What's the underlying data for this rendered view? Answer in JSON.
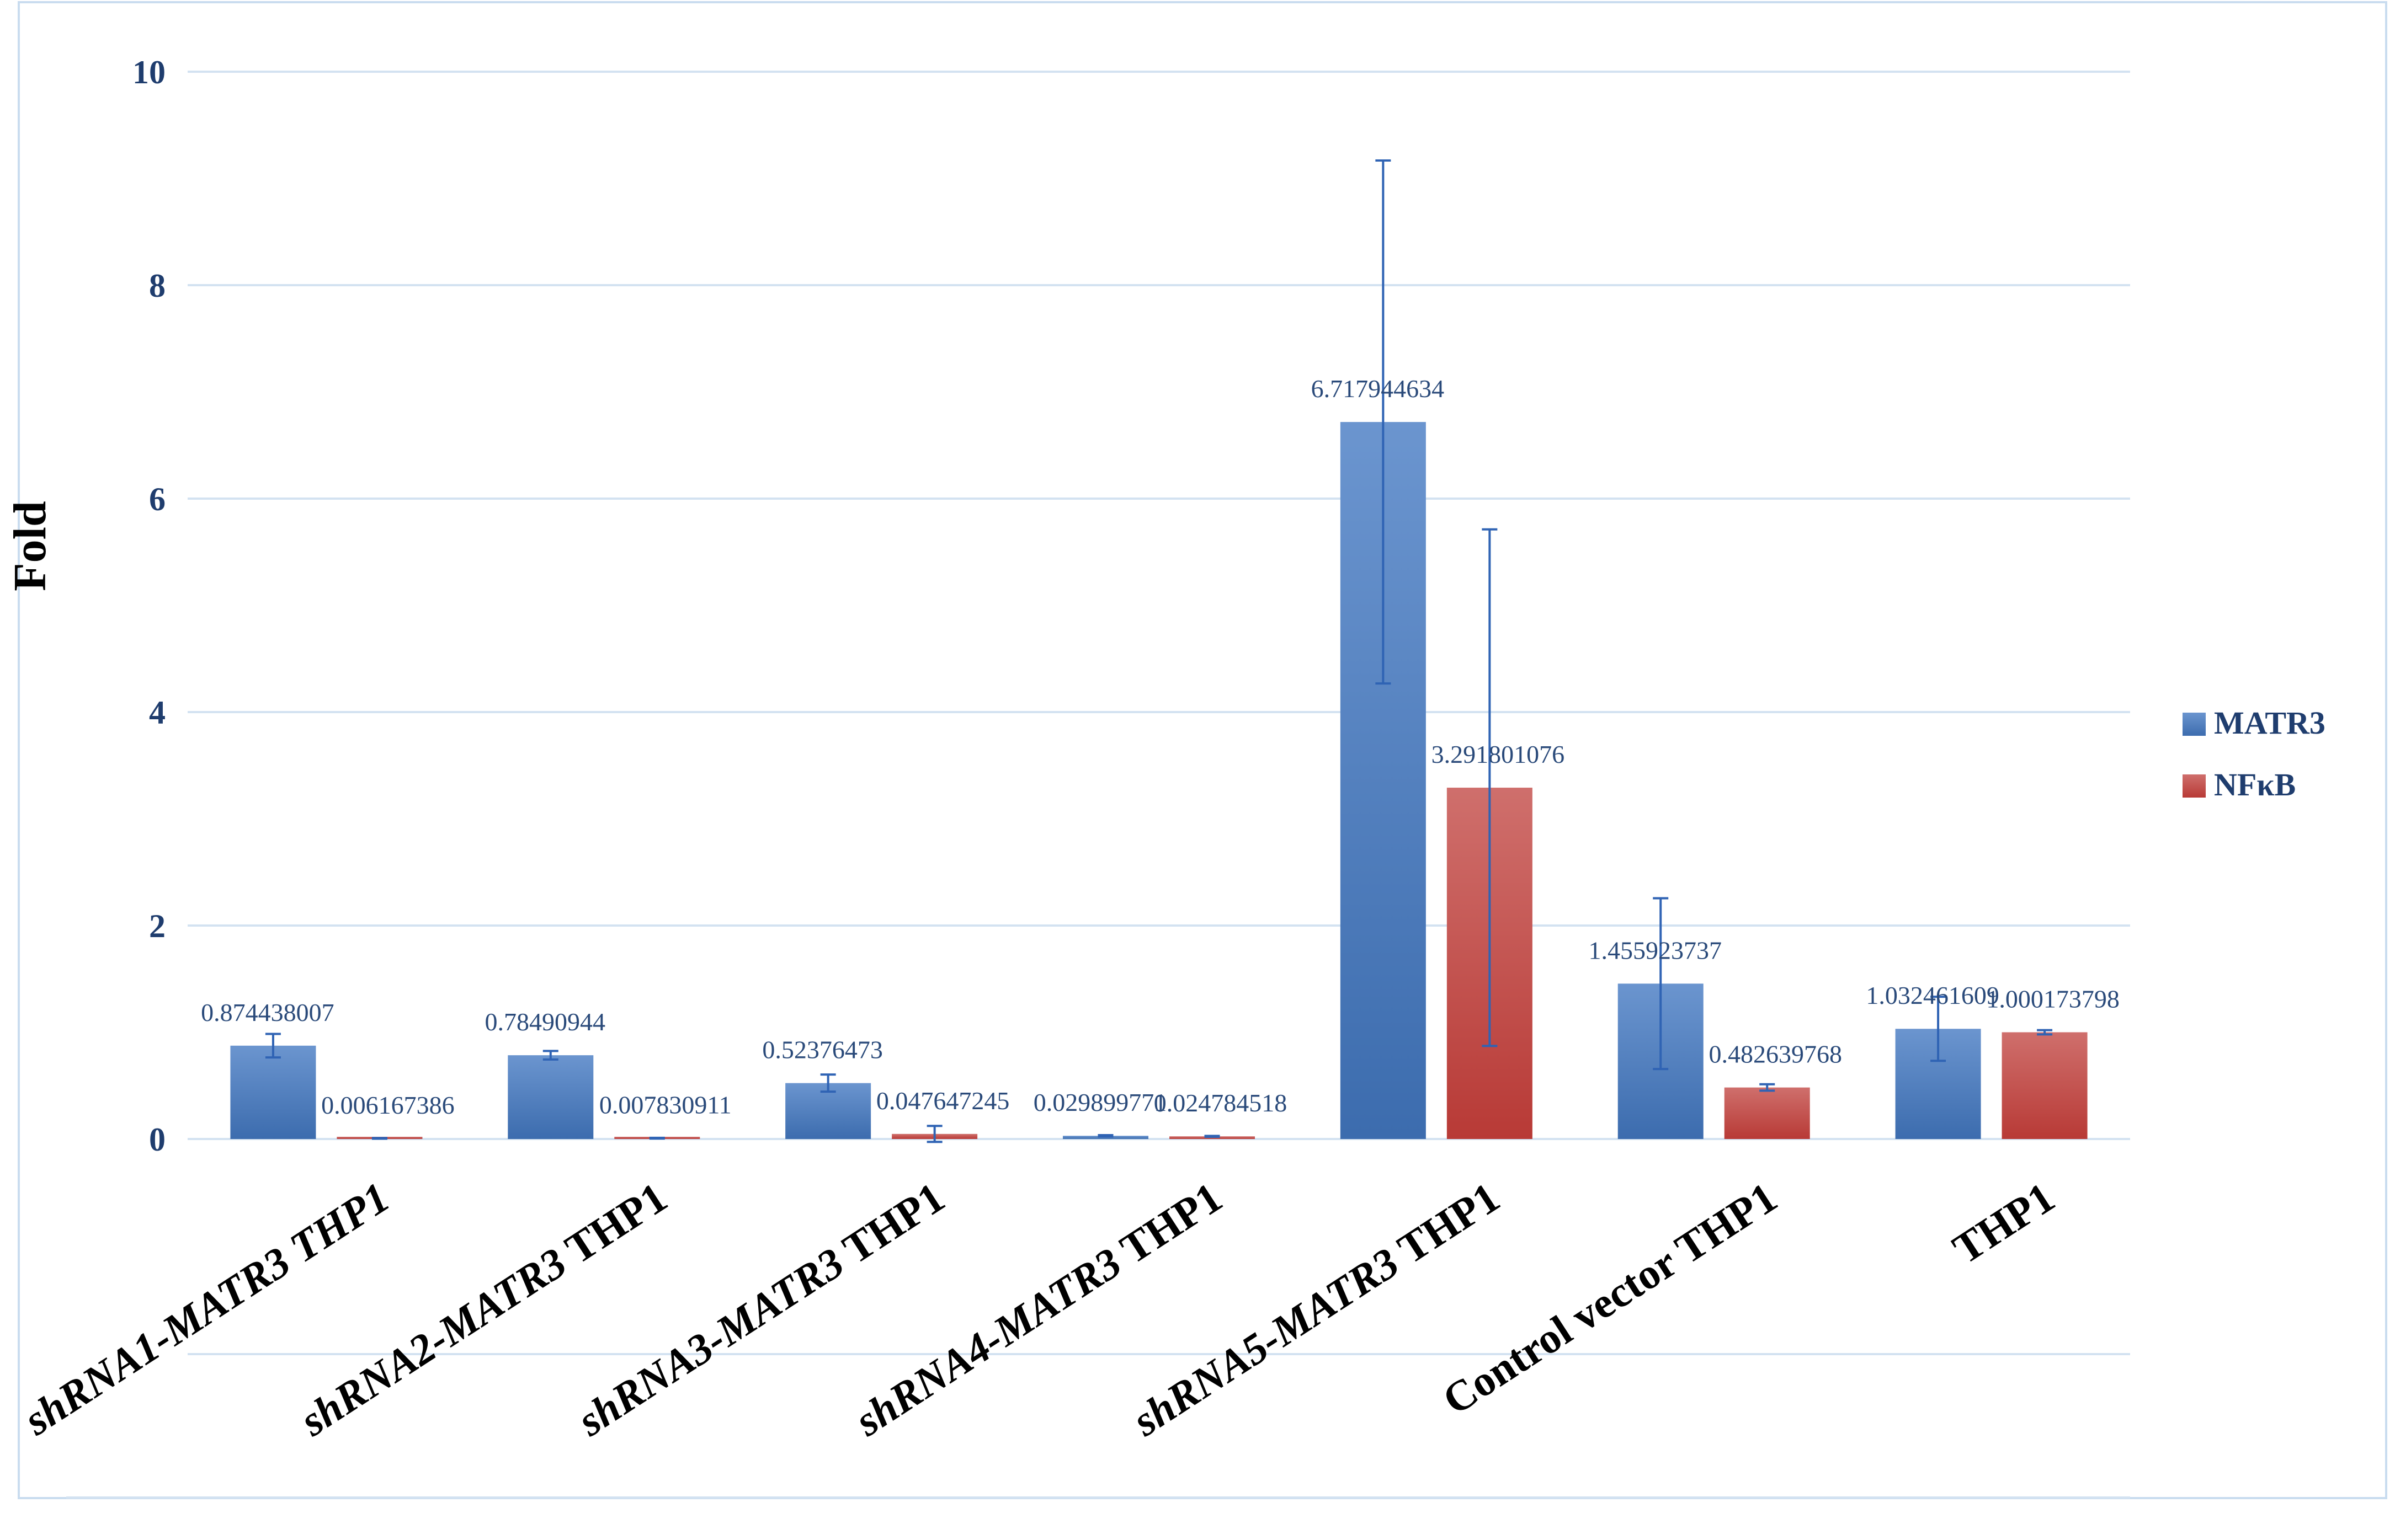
{
  "chart_data": {
    "type": "bar",
    "title": "",
    "xlabel": "",
    "ylabel": "Fold",
    "ylim": [
      0,
      10
    ],
    "yticks": [
      0,
      2,
      4,
      6,
      8,
      10
    ],
    "grid": true,
    "legend_position": "right",
    "categories": [
      {
        "prefix": "shRNA1-MATR3",
        "suffix": " THP1",
        "prefix_italic": true,
        "suffix_italic": true
      },
      {
        "prefix": "shRNA2-MATR3",
        "suffix": " THP1",
        "prefix_italic": true,
        "suffix_italic": false
      },
      {
        "prefix": "shRNA3-MATR3",
        "suffix": " THP1",
        "prefix_italic": true,
        "suffix_italic": false
      },
      {
        "prefix": "shRNA4-MATR3",
        "suffix": " THP1",
        "prefix_italic": true,
        "suffix_italic": false
      },
      {
        "prefix": "shRNA5-MATR3",
        "suffix": " THP1",
        "prefix_italic": true,
        "suffix_italic": false
      },
      {
        "prefix": "",
        "suffix": "Control vector THP1",
        "prefix_italic": false,
        "suffix_italic": false
      },
      {
        "prefix": "",
        "suffix": "THP1",
        "prefix_italic": false,
        "suffix_italic": false
      }
    ],
    "series": [
      {
        "name": "MATR3",
        "color": "#4a78b8",
        "values": [
          0.874438007,
          0.78490944,
          0.52376473,
          0.029899771,
          6.717944634,
          1.455923737,
          1.032461609
        ],
        "labels": [
          "0.874438007",
          "0.78490944",
          "0.52376473",
          "0.029899771",
          "6.717944634",
          "1.455923737",
          "1.032461609"
        ],
        "errors": [
          0.11,
          0.04,
          0.08,
          0.006,
          2.45,
          0.8,
          0.3
        ]
      },
      {
        "name": "NFκB",
        "color": "#c0504d",
        "values": [
          0.006167386,
          0.007830911,
          0.047647245,
          0.024784518,
          3.291801076,
          0.482639768,
          1.000173798
        ],
        "labels": [
          "0.006167386",
          "0.007830911",
          "0.047647245",
          "0.024784518",
          "3.291801076",
          "0.482639768",
          "1.000173798"
        ],
        "errors": [
          0.003,
          0.003,
          0.075,
          0.004,
          2.42,
          0.03,
          0.02
        ]
      }
    ]
  }
}
